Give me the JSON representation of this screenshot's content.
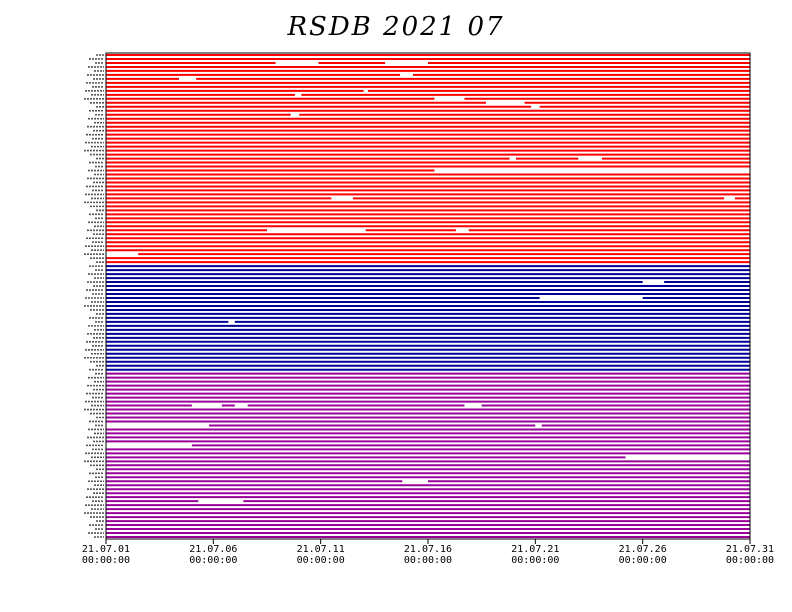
{
  "chart_data": {
    "type": "timeline",
    "title": "RSDB  2021  07",
    "xlabel": "",
    "ylabel": "",
    "x_ticks": [
      {
        "date": "21.07.01",
        "time": "00:00:00",
        "day": 0
      },
      {
        "date": "21.07.06",
        "time": "00:00:00",
        "day": 5
      },
      {
        "date": "21.07.11",
        "time": "00:00:00",
        "day": 10
      },
      {
        "date": "21.07.16",
        "time": "00:00:00",
        "day": 15
      },
      {
        "date": "21.07.21",
        "time": "00:00:00",
        "day": 20
      },
      {
        "date": "21.07.26",
        "time": "00:00:00",
        "day": 25
      },
      {
        "date": "21.07.31",
        "time": "00:00:00",
        "day": 30
      }
    ],
    "xlim": [
      "21.07.01 00:00:00",
      "21.07.31 00:00:00"
    ],
    "grid": false,
    "groups": [
      {
        "color": "#ff0000",
        "rows": 53
      },
      {
        "color": "#000099",
        "rows": 27
      },
      {
        "color": "#990099",
        "rows": 42
      }
    ],
    "gaps": [
      [
        2,
        7.9,
        9.9
      ],
      [
        2,
        13.0,
        15.0
      ],
      [
        5,
        13.7,
        14.3
      ],
      [
        6,
        3.4,
        4.2
      ],
      [
        9,
        12.0,
        12.2
      ],
      [
        10,
        8.8,
        9.1
      ],
      [
        11,
        15.3,
        16.7
      ],
      [
        12,
        17.7,
        19.5
      ],
      [
        13,
        19.8,
        20.2
      ],
      [
        15,
        8.6,
        9.0
      ],
      [
        26,
        18.8,
        19.1
      ],
      [
        26,
        22.0,
        23.1
      ],
      [
        29,
        15.3,
        30.0
      ],
      [
        36,
        10.5,
        11.5
      ],
      [
        36,
        28.8,
        29.3
      ],
      [
        44,
        7.5,
        12.1
      ],
      [
        44,
        16.3,
        16.9
      ],
      [
        50,
        0.0,
        1.5
      ],
      [
        57,
        25.0,
        26.0
      ],
      [
        61,
        20.2,
        25.0
      ],
      [
        67,
        5.7,
        6.0
      ],
      [
        88,
        4.0,
        5.4
      ],
      [
        88,
        6.0,
        6.6
      ],
      [
        88,
        16.7,
        17.5
      ],
      [
        93,
        0.0,
        4.8
      ],
      [
        93,
        20.0,
        20.3
      ],
      [
        98,
        0.0,
        4.0
      ],
      [
        101,
        24.2,
        30.0
      ],
      [
        107,
        13.8,
        15.0
      ],
      [
        112,
        4.3,
        6.4
      ]
    ]
  }
}
